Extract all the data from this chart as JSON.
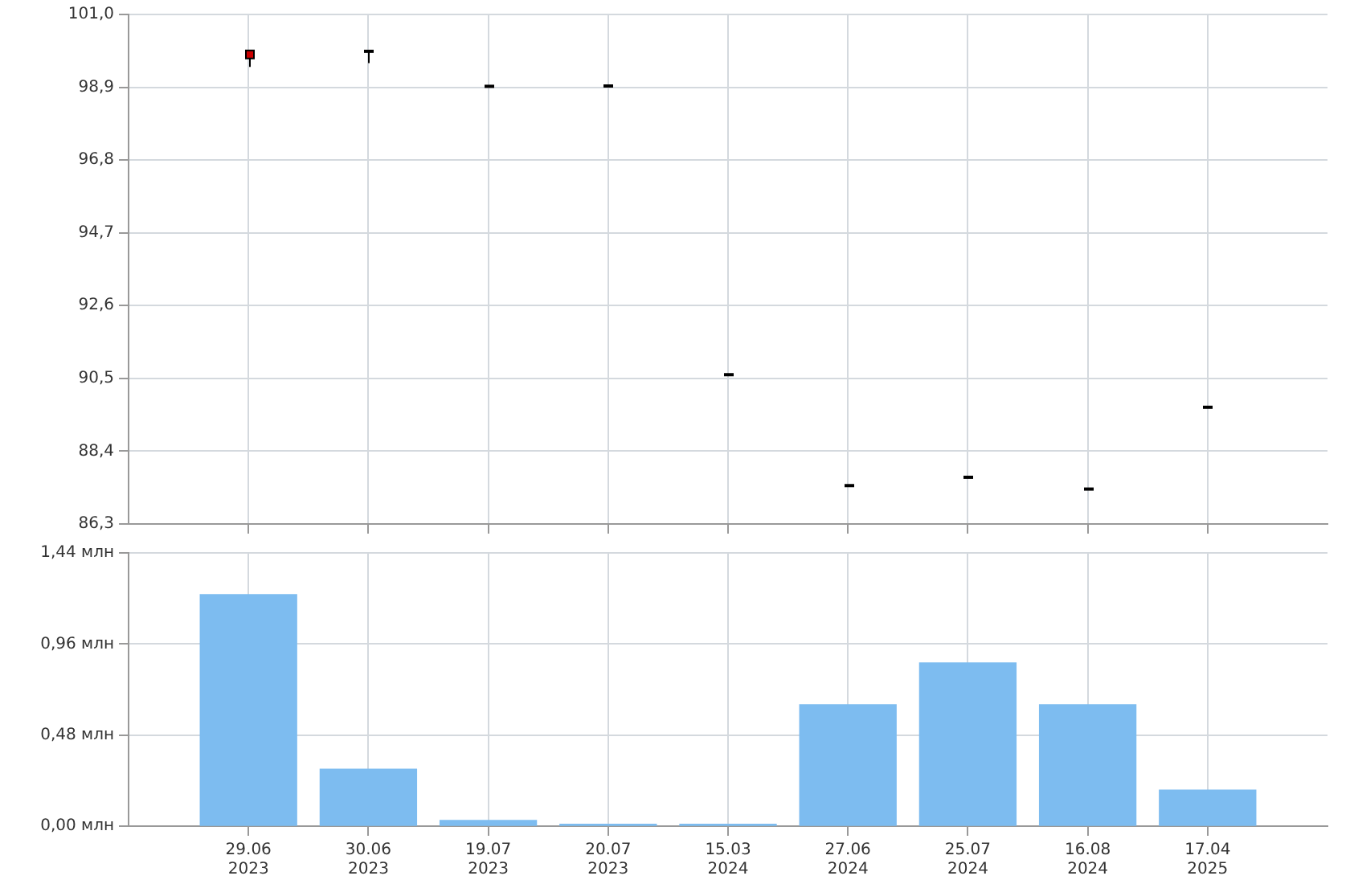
{
  "chart_data": [
    {
      "type": "candlestick",
      "categories": [
        null,
        null,
        null,
        null,
        null,
        null,
        null,
        null,
        null
      ],
      "ohlc": [
        [
          99.96,
          99.96,
          99.49,
          99.73
        ],
        [
          99.96,
          99.98,
          99.6,
          99.96
        ],
        [
          98.95,
          98.95,
          98.95,
          98.95
        ],
        [
          98.96,
          98.96,
          98.96,
          98.96
        ],
        [
          90.63,
          90.63,
          90.63,
          90.63
        ],
        [
          87.43,
          87.43,
          87.43,
          87.43
        ],
        [
          87.67,
          87.67,
          87.67,
          87.67
        ],
        [
          87.33,
          87.33,
          87.33,
          87.33
        ],
        [
          89.69,
          89.69,
          89.69,
          89.69
        ]
      ],
      "colors": [
        "#cc0000",
        "#000000",
        "#000000",
        "#000000",
        "#000000",
        "#000000",
        "#000000",
        "#000000",
        "#000000"
      ],
      "ylim": [
        86.3,
        101.0
      ],
      "yticks": [
        {
          "value": 86.3,
          "label": "86,3"
        },
        {
          "value": 88.4,
          "label": "88,4"
        },
        {
          "value": 90.5,
          "label": "90,5"
        },
        {
          "value": 92.6,
          "label": "92,6"
        },
        {
          "value": 94.7,
          "label": "94,7"
        },
        {
          "value": 96.8,
          "label": "96,8"
        },
        {
          "value": 98.9,
          "label": "98,9"
        },
        {
          "value": 101.0,
          "label": "101,0"
        }
      ],
      "grid": true,
      "tick_labels": "y"
    },
    {
      "type": "bar",
      "categories": [
        "29.06\n2023",
        "30.06\n2023",
        "19.07\n2023",
        "20.07\n2023",
        "15.03\n2024",
        "27.06\n2024",
        "25.07\n2024",
        "16.08\n2024",
        "17.04\n2025"
      ],
      "values": [
        1.22,
        0.3,
        0.03,
        0.01,
        0.01,
        0.64,
        0.86,
        0.64,
        0.19
      ],
      "color": "#7dbcf0",
      "ylim": [
        0,
        1.44
      ],
      "yticks": [
        {
          "value": 0,
          "label": "0,00 млн"
        },
        {
          "value": 0.48,
          "label": "0,48 млн"
        },
        {
          "value": 0.96,
          "label": "0,96 млн"
        },
        {
          "value": 1.44,
          "label": "1,44 млн"
        }
      ],
      "grid": true
    }
  ]
}
